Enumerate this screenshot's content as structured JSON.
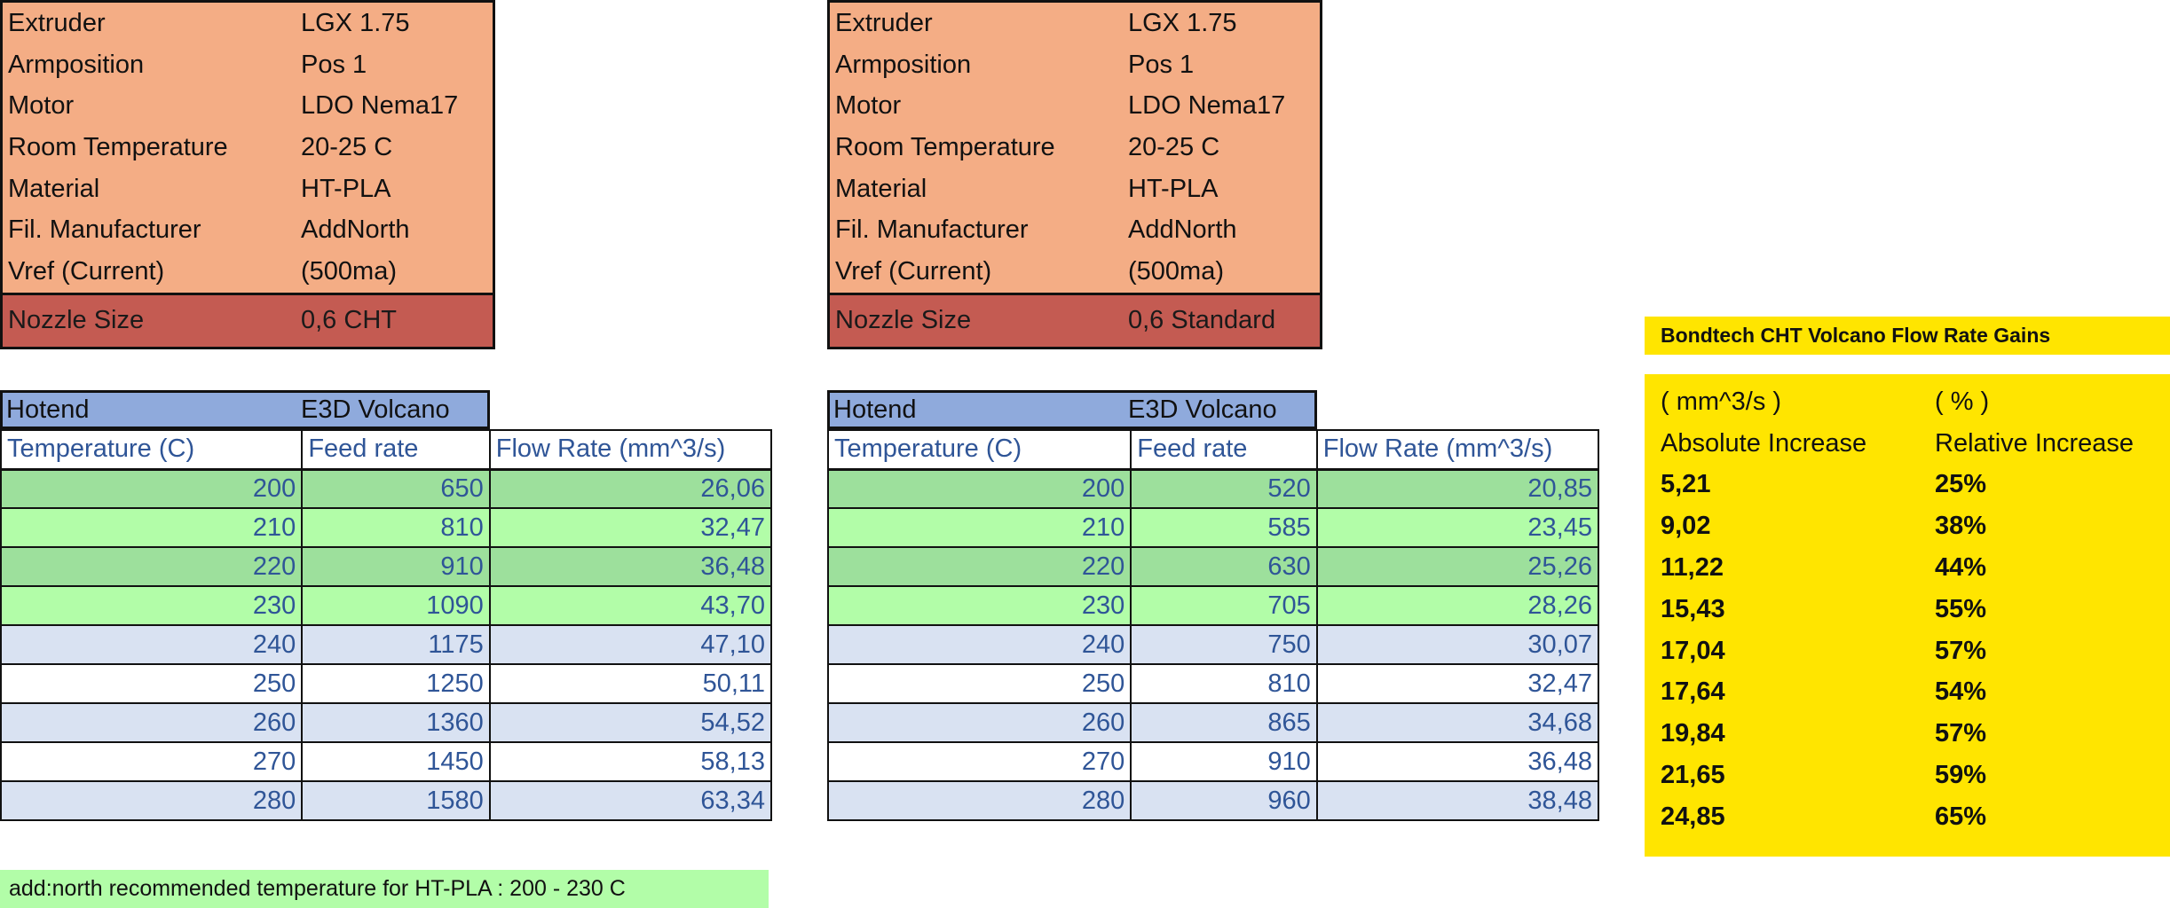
{
  "left": {
    "spec": [
      {
        "key": "Extruder",
        "value": "LGX 1.75"
      },
      {
        "key": "Armposition",
        "value": "Pos 1"
      },
      {
        "key": "Motor",
        "value": "LDO Nema17"
      },
      {
        "key": "Room Temperature",
        "value": "20-25 C"
      },
      {
        "key": "Material",
        "value": "HT-PLA"
      },
      {
        "key": "Fil. Manufacturer",
        "value": "AddNorth"
      },
      {
        "key": "Vref (Current)",
        "value": "(500ma)"
      }
    ],
    "nozzle": {
      "key": "Nozzle Size",
      "value": "0,6 CHT"
    },
    "hotend": {
      "key": "Hotend",
      "value": "E3D Volcano"
    },
    "headers": [
      "Temperature (C)",
      "Feed rate",
      "Flow Rate (mm^3/s)"
    ],
    "rows": [
      [
        "200",
        "650",
        "26,06"
      ],
      [
        "210",
        "810",
        "32,47"
      ],
      [
        "220",
        "910",
        "36,48"
      ],
      [
        "230",
        "1090",
        "43,70"
      ],
      [
        "240",
        "1175",
        "47,10"
      ],
      [
        "250",
        "1250",
        "50,11"
      ],
      [
        "260",
        "1360",
        "54,52"
      ],
      [
        "270",
        "1450",
        "58,13"
      ],
      [
        "280",
        "1580",
        "63,34"
      ]
    ]
  },
  "right": {
    "spec": [
      {
        "key": "Extruder",
        "value": "LGX 1.75"
      },
      {
        "key": "Armposition",
        "value": "Pos 1"
      },
      {
        "key": "Motor",
        "value": "LDO Nema17"
      },
      {
        "key": "Room Temperature",
        "value": "20-25 C"
      },
      {
        "key": "Material",
        "value": "HT-PLA"
      },
      {
        "key": "Fil. Manufacturer",
        "value": "AddNorth"
      },
      {
        "key": "Vref (Current)",
        "value": "(500ma)"
      }
    ],
    "nozzle": {
      "key": "Nozzle Size",
      "value": "0,6 Standard"
    },
    "hotend": {
      "key": "Hotend",
      "value": "E3D Volcano"
    },
    "headers": [
      "Temperature (C)",
      "Feed rate",
      "Flow Rate (mm^3/s)"
    ],
    "rows": [
      [
        "200",
        "520",
        "20,85"
      ],
      [
        "210",
        "585",
        "23,45"
      ],
      [
        "220",
        "630",
        "25,26"
      ],
      [
        "230",
        "705",
        "28,26"
      ],
      [
        "240",
        "750",
        "30,07"
      ],
      [
        "250",
        "810",
        "32,47"
      ],
      [
        "260",
        "865",
        "34,68"
      ],
      [
        "270",
        "910",
        "36,48"
      ],
      [
        "280",
        "960",
        "38,48"
      ]
    ]
  },
  "note": "add:north recommended temperature for HT-PLA : 200 - 230 C",
  "gains": {
    "title": "Bondtech CHT Volcano Flow Rate Gains",
    "units": [
      "( mm^3/s )",
      "( % )"
    ],
    "headers": [
      "Absolute Increase",
      "Relative Increase"
    ],
    "rows": [
      [
        "5,21",
        "25%"
      ],
      [
        "9,02",
        "38%"
      ],
      [
        "11,22",
        "44%"
      ],
      [
        "15,43",
        "55%"
      ],
      [
        "17,04",
        "57%"
      ],
      [
        "17,64",
        "54%"
      ],
      [
        "19,84",
        "57%"
      ],
      [
        "21,65",
        "59%"
      ],
      [
        "24,85",
        "65%"
      ]
    ]
  }
}
